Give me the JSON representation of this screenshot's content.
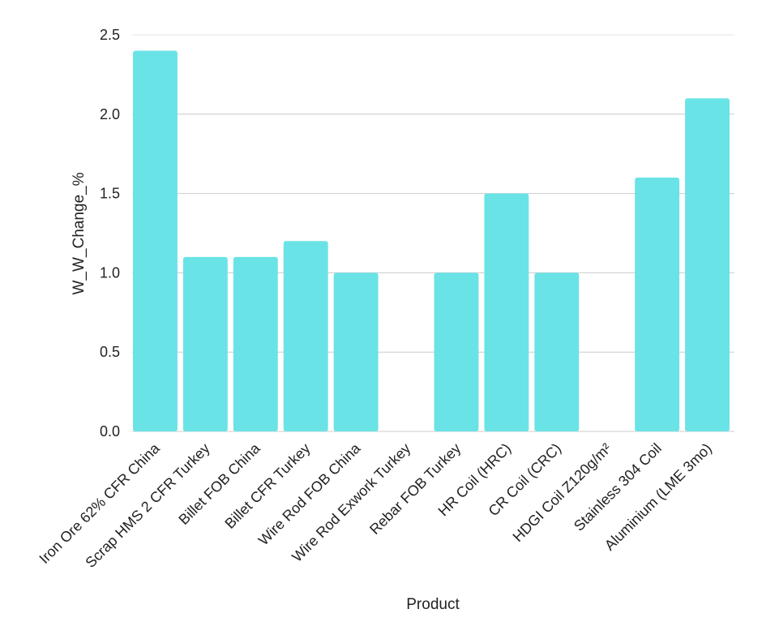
{
  "chart_data": {
    "type": "bar",
    "title": "",
    "xlabel": "Product",
    "ylabel": "W_W_Change_%",
    "ylim": [
      0,
      2.5
    ],
    "yticks": [
      "0.0",
      "0.5",
      "1.0",
      "1.5",
      "2.0",
      "2.5"
    ],
    "grid": true,
    "categories": [
      "Iron Ore 62% CFR China",
      "Scrap HMS 2 CFR Turkey",
      "Billet FOB China",
      "Billet CFR Turkey",
      "Wire Rod FOB China",
      "Wire Rod Exwork Turkey",
      "Rebar FOB Turkey",
      "HR Coil (HRC)",
      "CR Coil (CRC)",
      "HDGI Coil Z120g/m²",
      "Stainless 304 Coil",
      "Aluminium (LME 3mo)"
    ],
    "values": [
      2.4,
      1.1,
      1.1,
      1.2,
      1.0,
      0,
      1.0,
      1.5,
      1.0,
      0,
      1.6,
      2.1
    ],
    "colors": {
      "bar": "#6AE3E6",
      "grid": "#cccccc",
      "text": "#222222"
    }
  }
}
